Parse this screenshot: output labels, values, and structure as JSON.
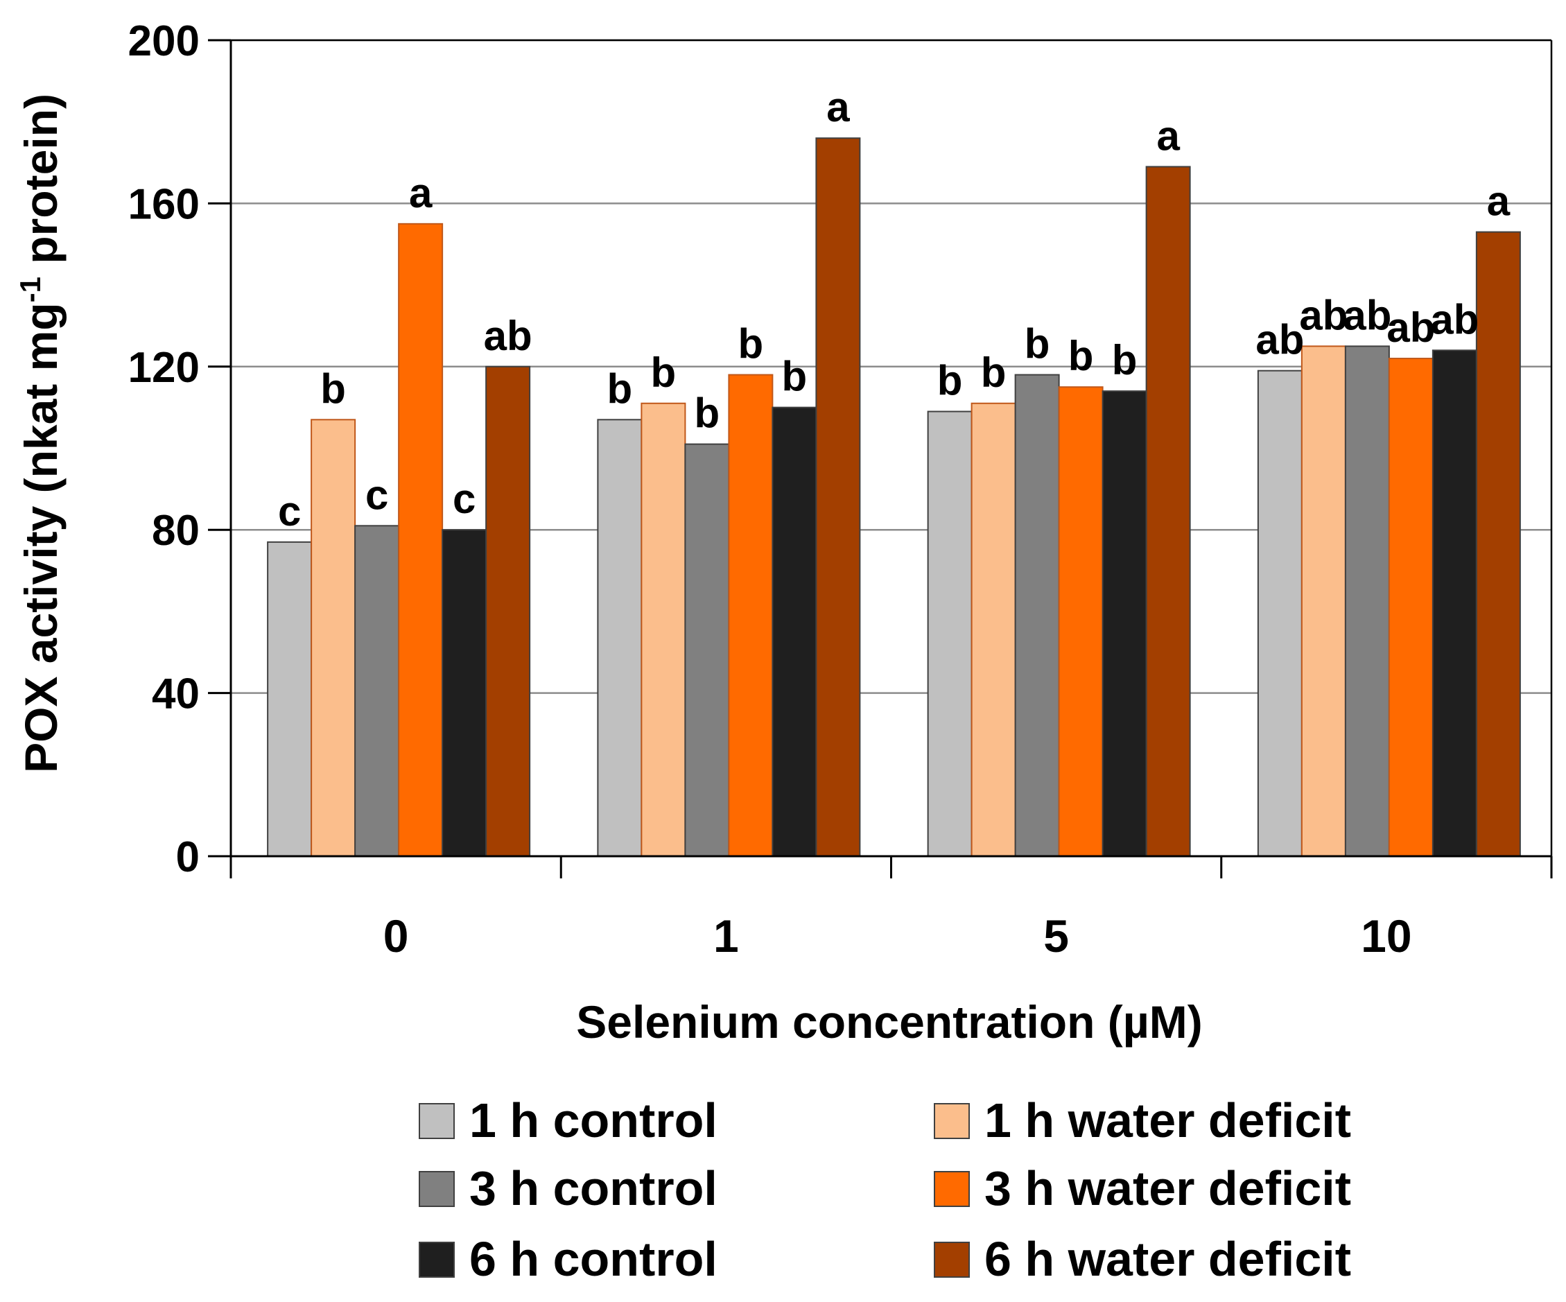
{
  "chart_data": {
    "type": "bar",
    "title": "",
    "xlabel": "Selenium concentration (µM)",
    "ylabel_main": "POX activity (nkat mg",
    "ylabel_sup": "-1",
    "ylabel_end": " protein)",
    "ylim": [
      0,
      200
    ],
    "yticks": [
      0,
      40,
      80,
      120,
      160,
      200
    ],
    "categories": [
      "0",
      "1",
      "5",
      "10"
    ],
    "grid": true,
    "legend_position": "bottom",
    "series": [
      {
        "name": "1 h control",
        "color": "#c0c0c0",
        "values": [
          77,
          107,
          109,
          119
        ],
        "labels": [
          "c",
          "b",
          "b",
          "ab"
        ]
      },
      {
        "name": "1 h water deficit",
        "color": "#fbbe8c",
        "values": [
          107,
          111,
          111,
          125
        ],
        "labels": [
          "b",
          "b",
          "b",
          "ab"
        ]
      },
      {
        "name": "3 h control",
        "color": "#808080",
        "values": [
          81,
          101,
          118,
          125
        ],
        "labels": [
          "c",
          "b",
          "b",
          "ab"
        ]
      },
      {
        "name": "3 h water deficit",
        "color": "#ff6a00",
        "values": [
          155,
          118,
          115,
          122
        ],
        "labels": [
          "a",
          "b",
          "b",
          "ab"
        ]
      },
      {
        "name": "6 h control",
        "color": "#1f1f1f",
        "values": [
          80,
          110,
          114,
          124
        ],
        "labels": [
          "c",
          "b",
          "b",
          "ab"
        ]
      },
      {
        "name": "6 h water deficit",
        "color": "#a33f00",
        "values": [
          120,
          176,
          169,
          153
        ],
        "labels": [
          "ab",
          "a",
          "a",
          "a"
        ]
      }
    ]
  }
}
